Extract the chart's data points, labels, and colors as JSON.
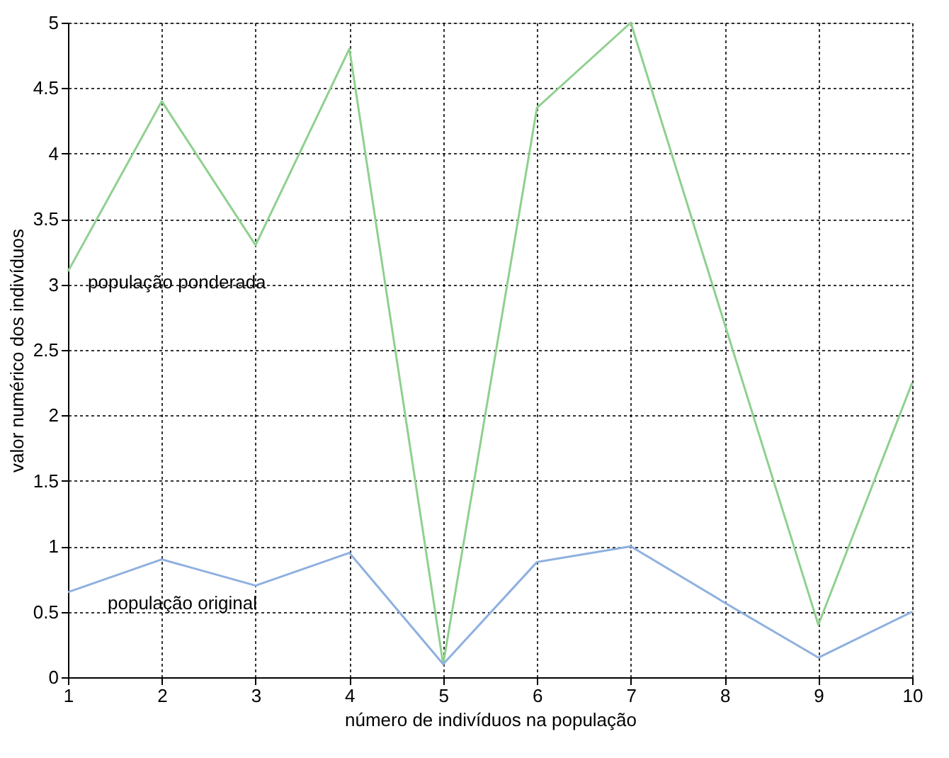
{
  "chart_data": {
    "type": "line",
    "xlabel": "número de indivíduos na população",
    "ylabel": "valor numérico dos indivíduos",
    "x": [
      1,
      2,
      3,
      4,
      5,
      6,
      7,
      8,
      9,
      10
    ],
    "series": [
      {
        "name": "população ponderada",
        "color": "#8fd08f",
        "values": [
          3.1,
          4.4,
          3.3,
          4.8,
          0.1,
          4.35,
          5.0,
          2.7,
          0.4,
          2.25
        ]
      },
      {
        "name": "população original",
        "color": "#8fb0e0",
        "values": [
          0.65,
          0.9,
          0.7,
          0.95,
          0.1,
          0.88,
          1.0,
          0.57,
          0.15,
          0.5
        ]
      }
    ],
    "xlim": [
      1,
      10
    ],
    "xticks": [
      1,
      2,
      3,
      4,
      5,
      6,
      7,
      8,
      9,
      10
    ],
    "ylim": [
      0,
      5
    ],
    "yticks": [
      0,
      0.5,
      1,
      1.5,
      2,
      2.5,
      3,
      3.5,
      4,
      4.5,
      5
    ],
    "grid": true,
    "marker": "none",
    "line_style": "solid"
  }
}
